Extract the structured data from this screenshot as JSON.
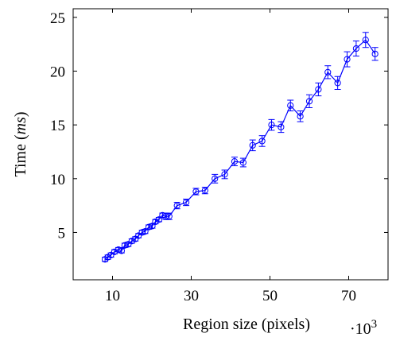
{
  "chart_data": {
    "type": "line",
    "title": "",
    "xlabel": "Region size (pixels)",
    "ylabel_prefix": "Time (",
    "ylabel_unit": "ms",
    "ylabel_suffix": ")",
    "x_scale_base": "·10",
    "x_scale_exp": "3",
    "xlim": [
      0,
      80
    ],
    "ylim": [
      0.6,
      25.8
    ],
    "xticks": [
      10,
      30,
      50,
      70
    ],
    "yticks": [
      5,
      10,
      15,
      20,
      25
    ],
    "grid": false,
    "color": "#0000ff",
    "series": [
      {
        "marker": "circle",
        "x": [
          8.1,
          8.8,
          9.6,
          10.5,
          11.5,
          12.3,
          13.1,
          14.0,
          14.9,
          15.8,
          16.6,
          17.5,
          18.3,
          19.2,
          20.1,
          20.9,
          21.8,
          22.7,
          23.5,
          24.4,
          26.4,
          28.7,
          31.2,
          33.5,
          36.0,
          38.5,
          41.0,
          43.2,
          45.6,
          48.0,
          50.4,
          52.8,
          55.2,
          57.7,
          60.0,
          62.3,
          64.7,
          67.2,
          69.6,
          71.9,
          74.3,
          76.7
        ],
        "y": [
          2.5,
          2.7,
          2.9,
          3.2,
          3.4,
          3.3,
          3.8,
          3.9,
          4.2,
          4.4,
          4.7,
          5.0,
          5.1,
          5.5,
          5.6,
          6.0,
          6.2,
          6.6,
          6.5,
          6.5,
          7.5,
          7.8,
          8.8,
          8.9,
          10.0,
          10.4,
          11.6,
          11.5,
          13.1,
          13.5,
          15.0,
          14.8,
          16.8,
          15.8,
          17.2,
          18.3,
          19.9,
          18.9,
          21.1,
          22.1,
          22.9,
          21.6
        ],
        "err": [
          0.2,
          0.2,
          0.2,
          0.2,
          0.2,
          0.2,
          0.2,
          0.2,
          0.2,
          0.2,
          0.2,
          0.2,
          0.2,
          0.2,
          0.2,
          0.2,
          0.2,
          0.2,
          0.3,
          0.3,
          0.3,
          0.3,
          0.3,
          0.3,
          0.4,
          0.4,
          0.4,
          0.4,
          0.5,
          0.5,
          0.5,
          0.5,
          0.5,
          0.5,
          0.6,
          0.6,
          0.6,
          0.6,
          0.7,
          0.7,
          0.7,
          0.6
        ]
      }
    ]
  }
}
